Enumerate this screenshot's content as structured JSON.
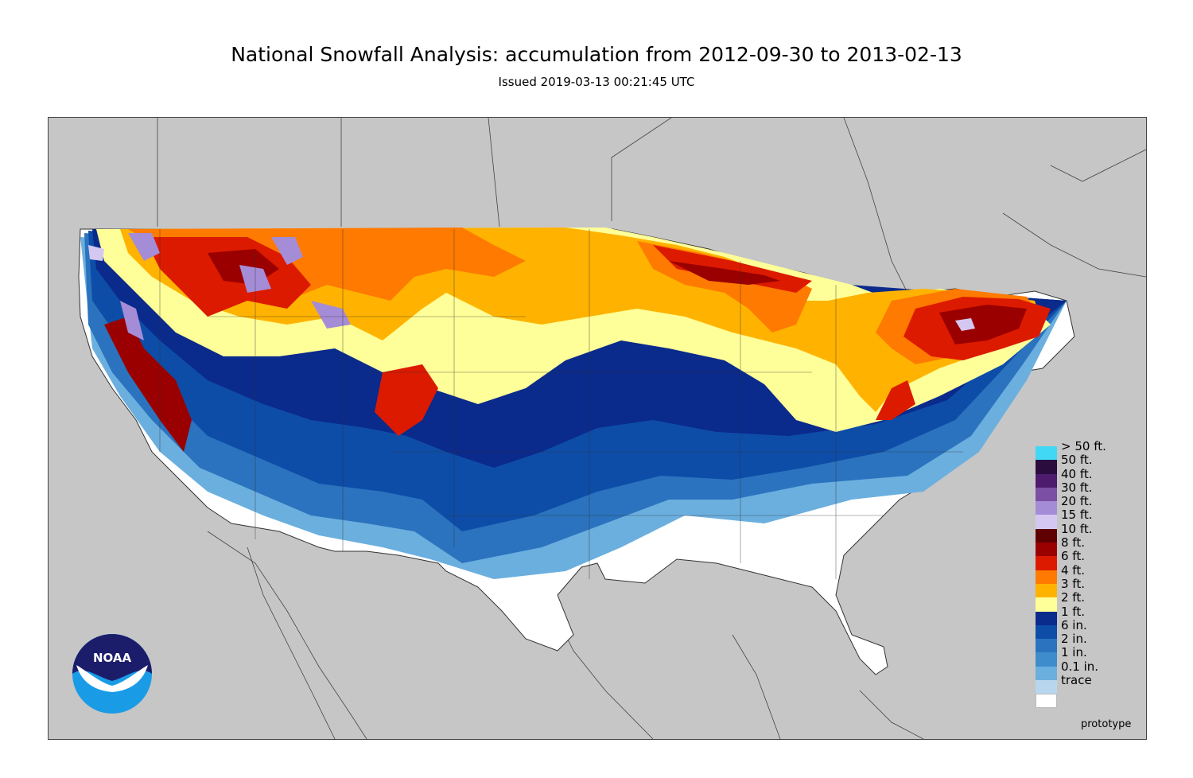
{
  "title": "National Snowfall Analysis: accumulation from 2012-09-30 to 2013-02-13",
  "subtitle": "Issued 2019-03-13 00:21:45 UTC",
  "footer_note": "prototype",
  "logo_text": "NOAA",
  "colors": {
    "background": "#c6c6c6",
    "land_outline": "#333333"
  },
  "legend": {
    "items": [
      {
        "label": "> 50 ft.",
        "color": "#41d8f5"
      },
      {
        "label": "50 ft.",
        "color": "#2a0d3e"
      },
      {
        "label": "40 ft.",
        "color": "#4e1b6e"
      },
      {
        "label": "30 ft.",
        "color": "#7a4fa4"
      },
      {
        "label": "20 ft.",
        "color": "#a58cd6"
      },
      {
        "label": "15 ft.",
        "color": "#d4c8f2"
      },
      {
        "label": "10 ft.",
        "color": "#5e0000"
      },
      {
        "label": "8 ft.",
        "color": "#9a0000"
      },
      {
        "label": "6 ft.",
        "color": "#dc1a00"
      },
      {
        "label": "4 ft.",
        "color": "#ff7a00"
      },
      {
        "label": "3 ft.",
        "color": "#ffb300"
      },
      {
        "label": "2 ft.",
        "color": "#ffff99"
      },
      {
        "label": "1 ft.",
        "color": "#0a2a8c"
      },
      {
        "label": "6 in.",
        "color": "#0d4da8"
      },
      {
        "label": "2 in.",
        "color": "#2b73be"
      },
      {
        "label": "1 in.",
        "color": "#3f8ccc"
      },
      {
        "label": "0.1 in.",
        "color": "#6bafdf"
      },
      {
        "label": "trace",
        "color": "#b8d7ee"
      },
      {
        "label": "",
        "color": "#ffffff"
      }
    ]
  }
}
